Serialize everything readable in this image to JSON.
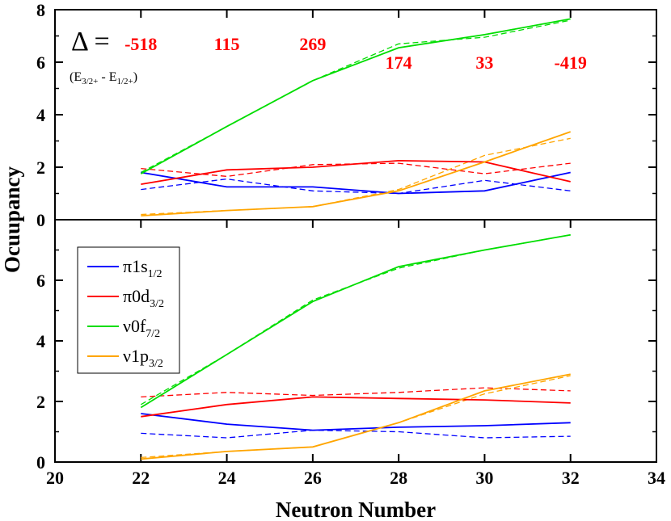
{
  "chart_data": {
    "type": "line",
    "xlabel": "Neutron Number",
    "ylabel": "Ocuupancy",
    "xlim": [
      20,
      34
    ],
    "x_ticks": [
      20,
      22,
      24,
      26,
      28,
      30,
      32,
      34
    ],
    "x_tick_labels": [
      "20",
      "22",
      "24",
      "26",
      "28",
      "30",
      "32",
      "34"
    ],
    "x": [
      22,
      24,
      26,
      28,
      30,
      32
    ],
    "legend": {
      "placement": "left-middle",
      "entries": [
        {
          "greek": "π",
          "main": "1s",
          "sub": "1/2",
          "color": "#0000ff"
        },
        {
          "greek": "π",
          "main": "0d",
          "sub": "3/2",
          "color": "#ff0000"
        },
        {
          "greek": "ν",
          "main": "0f",
          "sub": "7/2",
          "color": "#00dd00"
        },
        {
          "greek": "ν",
          "main": "1p",
          "sub": "3/2",
          "color": "#ffa500"
        }
      ]
    },
    "panels": [
      {
        "name": "top",
        "ylim": [
          0,
          8
        ],
        "y_ticks": [
          0,
          2,
          4,
          6,
          8
        ],
        "y_tick_labels": [
          "0",
          "2",
          "4",
          "6",
          "8"
        ],
        "annotation": {
          "symbol": "Δ =",
          "formula_open": "(E",
          "sub_a": "3/2+",
          "formula_mid": " - E",
          "sub_b": "1/2+",
          "formula_close": ")",
          "color": "#ff0000",
          "values": [
            {
              "x": 22,
              "row": "upper",
              "text": "-518"
            },
            {
              "x": 24,
              "row": "upper",
              "text": "115"
            },
            {
              "x": 26,
              "row": "upper",
              "text": "269"
            },
            {
              "x": 28,
              "row": "lower",
              "text": "174"
            },
            {
              "x": 30,
              "row": "lower",
              "text": "33"
            },
            {
              "x": 32,
              "row": "lower",
              "text": "-419"
            }
          ]
        },
        "series": [
          {
            "name": "π1s1/2",
            "color": "#0000ff",
            "style": "solid",
            "values": [
              1.8,
              1.25,
              1.25,
              1.0,
              1.1,
              1.8
            ]
          },
          {
            "name": "π1s1/2 (dashed)",
            "color": "#0000ff",
            "style": "dashed",
            "values": [
              1.15,
              1.55,
              1.1,
              1.0,
              1.5,
              1.1
            ]
          },
          {
            "name": "π0d3/2",
            "color": "#ff0000",
            "style": "solid",
            "values": [
              1.35,
              1.9,
              2.0,
              2.25,
              2.2,
              1.45
            ]
          },
          {
            "name": "π0d3/2 (dashed)",
            "color": "#ff0000",
            "style": "dashed",
            "values": [
              1.95,
              1.65,
              2.1,
              2.15,
              1.75,
              2.15
            ]
          },
          {
            "name": "ν0f7/2",
            "color": "#00dd00",
            "style": "solid",
            "values": [
              1.75,
              3.55,
              5.3,
              6.55,
              7.05,
              7.65
            ]
          },
          {
            "name": "ν0f7/2 (dashed)",
            "color": "#00dd00",
            "style": "dashed",
            "values": [
              1.8,
              3.55,
              5.3,
              6.7,
              6.95,
              7.6
            ]
          },
          {
            "name": "ν1p3/2",
            "color": "#ffa500",
            "style": "solid",
            "values": [
              0.15,
              0.35,
              0.5,
              1.1,
              2.2,
              3.35
            ]
          },
          {
            "name": "ν1p3/2 (dashed)",
            "color": "#ffa500",
            "style": "dashed",
            "values": [
              0.2,
              0.35,
              0.5,
              1.15,
              2.45,
              3.1
            ]
          }
        ]
      },
      {
        "name": "bottom",
        "ylim": [
          0,
          8
        ],
        "y_ticks": [
          0,
          2,
          4,
          6
        ],
        "y_tick_labels": [
          "0",
          "2",
          "4",
          "6"
        ],
        "series": [
          {
            "name": "π1s1/2",
            "color": "#0000ff",
            "style": "solid",
            "values": [
              1.6,
              1.25,
              1.05,
              1.15,
              1.2,
              1.3
            ]
          },
          {
            "name": "π1s1/2 (dashed)",
            "color": "#0000ff",
            "style": "dashed",
            "values": [
              0.95,
              0.8,
              1.05,
              1.0,
              0.8,
              0.85
            ]
          },
          {
            "name": "π0d3/2",
            "color": "#ff0000",
            "style": "solid",
            "values": [
              1.5,
              1.9,
              2.15,
              2.1,
              2.05,
              1.95
            ]
          },
          {
            "name": "π0d3/2 (dashed)",
            "color": "#ff0000",
            "style": "dashed",
            "values": [
              2.15,
              2.3,
              2.2,
              2.3,
              2.45,
              2.35
            ]
          },
          {
            "name": "ν0f7/2",
            "color": "#00dd00",
            "style": "solid",
            "values": [
              1.8,
              3.55,
              5.3,
              6.45,
              7.0,
              7.5
            ]
          },
          {
            "name": "ν0f7/2 (dashed)",
            "color": "#00dd00",
            "style": "dashed",
            "values": [
              1.9,
              3.55,
              5.35,
              6.4,
              7.0,
              7.5
            ]
          },
          {
            "name": "ν1p3/2",
            "color": "#ffa500",
            "style": "solid",
            "values": [
              0.1,
              0.35,
              0.5,
              1.3,
              2.35,
              2.9
            ]
          },
          {
            "name": "ν1p3/2 (dashed)",
            "color": "#ffa500",
            "style": "dashed",
            "values": [
              0.15,
              0.35,
              0.5,
              1.3,
              2.25,
              2.85
            ]
          }
        ]
      }
    ]
  }
}
